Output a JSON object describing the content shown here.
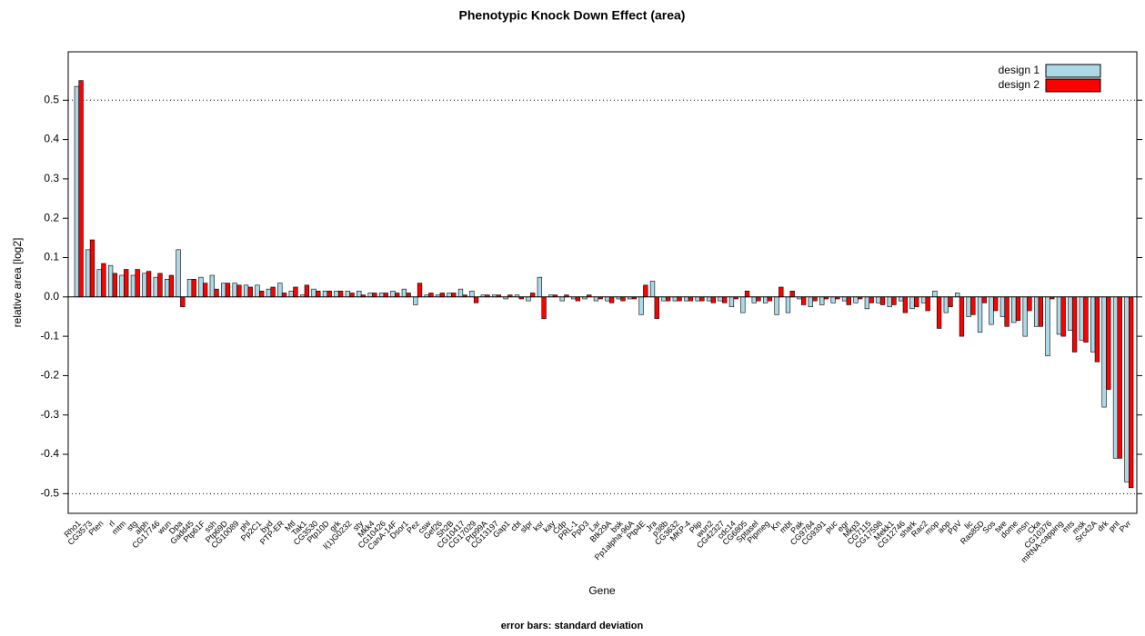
{
  "chart_data": {
    "type": "bar",
    "title": "Phenotypic Knock Down Effect (area)",
    "x_label": "Gene",
    "y_label": "relative area [log2]",
    "footnote": "error bars: standard deviation",
    "categories": [
      "Rho1",
      "CG3573",
      "Pten",
      "rl",
      "mtm",
      "stg",
      "alph",
      "CG17746",
      "wun",
      "Dpa",
      "Gadd45",
      "Ptp61F",
      "ssh",
      "Ptp69D",
      "CG10089",
      "phl",
      "Pp2C1",
      "byd",
      "PTP-ER",
      "Mtl",
      "Tak1",
      "CG3530",
      "Ptp10D",
      "grk",
      "l(1)G0232",
      "sty",
      "Mkk4",
      "CG10426",
      "CanA-14F",
      "Dsor1",
      "Pez",
      "csw",
      "Gef26",
      "Sh2B",
      "CG10417",
      "CG17029",
      "Ptp99A",
      "CG13197",
      "Gap1",
      "cbt",
      "slpr",
      "ksr",
      "kay",
      "Cdp",
      "PRL-1",
      "PpD3",
      "Lar",
      "Btk29A",
      "bsk",
      "Pp1alpha-96A",
      "Ptp4E",
      "Jra",
      "p38b",
      "CG3632",
      "MKP-4",
      "Plip",
      "wun2",
      "CG42327",
      "cdc14",
      "CG6805",
      "Sptasel",
      "Pipmeg",
      "Kn",
      "mbt",
      "Pak",
      "CG9784",
      "CG9391",
      "puc",
      "egr",
      "Mkp3",
      "CG7115",
      "CG17598",
      "Mekk1",
      "CG12746",
      "shark",
      "Rac2",
      "mop",
      "aop",
      "PpV",
      "lic",
      "Ras85D",
      "Sos",
      "twe",
      "dome",
      "msn",
      "Cka",
      "CG10376",
      "mRNA-capping",
      "mts",
      "msk",
      "Src42A",
      "drk",
      "pnt",
      "Pvr"
    ],
    "series": [
      {
        "name": "design 1",
        "color": "#add8e6",
        "values": [
          0.535,
          0.12,
          0.07,
          0.08,
          0.055,
          0.055,
          0.06,
          0.05,
          0.045,
          0.12,
          0.045,
          0.05,
          0.055,
          0.035,
          0.035,
          0.03,
          0.03,
          0.02,
          0.035,
          0.015,
          0.005,
          0.02,
          0.015,
          0.015,
          0.015,
          0.015,
          0.01,
          0.01,
          0.015,
          0.02,
          -0.02,
          0.005,
          0.005,
          0.01,
          0.02,
          0.015,
          0.005,
          0.005,
          -0.005,
          0.005,
          -0.01,
          0.05,
          0.005,
          -0.01,
          -0.005,
          -0.005,
          -0.01,
          -0.01,
          -0.005,
          -0.005,
          -0.045,
          0.04,
          -0.01,
          -0.01,
          -0.01,
          -0.01,
          -0.01,
          -0.01,
          -0.025,
          -0.04,
          -0.015,
          -0.015,
          -0.045,
          -0.04,
          -0.005,
          -0.025,
          -0.02,
          -0.015,
          -0.01,
          -0.015,
          -0.03,
          -0.015,
          -0.025,
          -0.01,
          -0.03,
          -0.015,
          0.015,
          -0.04,
          0.01,
          -0.05,
          -0.09,
          -0.07,
          -0.05,
          -0.065,
          -0.1,
          -0.075,
          -0.15,
          -0.095,
          -0.085,
          -0.11,
          -0.14,
          -0.28,
          -0.41,
          -0.47
        ]
      },
      {
        "name": "design 2",
        "color": "#ff0000",
        "values": [
          0.55,
          0.145,
          0.085,
          0.06,
          0.07,
          0.07,
          0.065,
          0.06,
          0.055,
          -0.025,
          0.045,
          0.035,
          0.02,
          0.035,
          0.03,
          0.025,
          0.015,
          0.025,
          0.01,
          0.025,
          0.03,
          0.015,
          0.015,
          0.015,
          0.01,
          0.005,
          0.01,
          0.01,
          0.01,
          0.01,
          0.035,
          0.01,
          0.01,
          0.01,
          0.005,
          -0.015,
          0.005,
          0.005,
          0.005,
          -0.005,
          0.01,
          -0.055,
          0.005,
          0.005,
          -0.01,
          0.005,
          -0.005,
          -0.015,
          -0.01,
          -0.005,
          0.03,
          -0.055,
          -0.01,
          -0.01,
          -0.01,
          -0.01,
          -0.015,
          -0.015,
          -0.005,
          0.015,
          -0.01,
          -0.01,
          0.025,
          0.015,
          -0.02,
          -0.01,
          -0.005,
          -0.005,
          -0.02,
          -0.005,
          -0.015,
          -0.02,
          -0.02,
          -0.04,
          -0.025,
          -0.035,
          -0.08,
          -0.025,
          -0.1,
          -0.045,
          -0.015,
          -0.035,
          -0.075,
          -0.06,
          -0.035,
          -0.075,
          -0.005,
          -0.1,
          -0.14,
          -0.115,
          -0.165,
          -0.235,
          -0.41,
          -0.485
        ]
      }
    ],
    "ylim": [
      -0.55,
      0.623
    ],
    "yticks": [
      -0.5,
      -0.4,
      -0.3,
      -0.2,
      -0.1,
      {
        "value": 0,
        "label": "0.0"
      },
      0.1,
      0.2,
      0.3,
      0.4,
      0.5
    ],
    "hlines": [
      -0.5,
      0.5
    ],
    "legend": "top-right"
  }
}
